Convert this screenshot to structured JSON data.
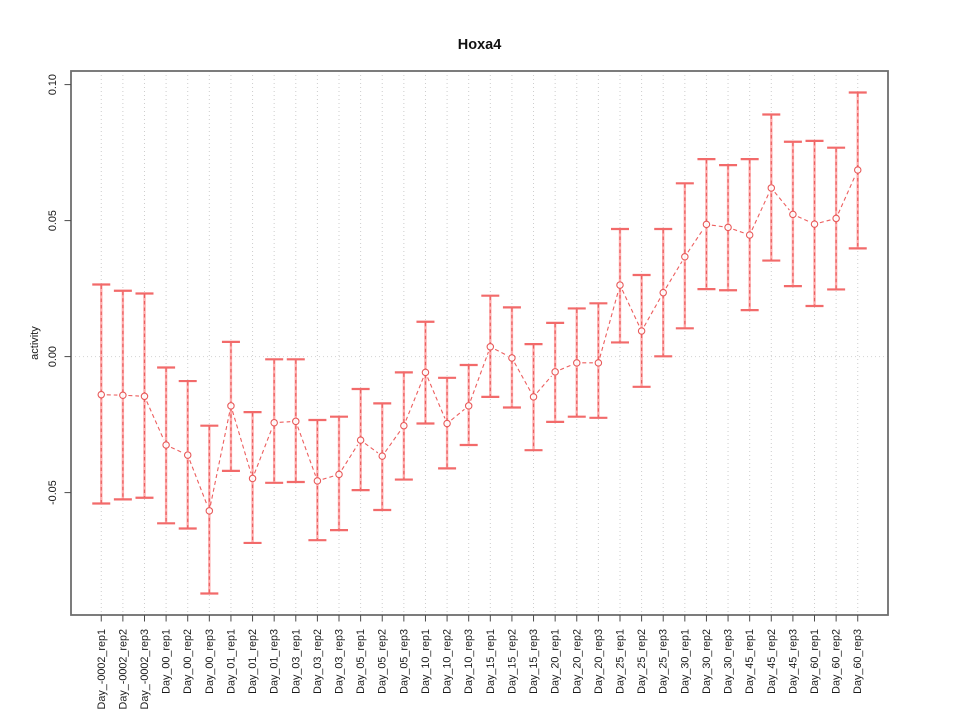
{
  "chart_data": {
    "type": "scatter",
    "subtype": "points-with-error-bars",
    "title": "Hoxa4",
    "xlabel": "",
    "ylabel": "activity",
    "ylim": [
      -0.095,
      0.105
    ],
    "yticks": [
      0.1,
      0.05,
      0.0,
      -0.05
    ],
    "ytick_labels": [
      "0.10",
      "0.05",
      "0.00",
      "-0.05"
    ],
    "grid": "dotted vertical gridline at each category and dotted horizontal line at y=0",
    "legend": "none",
    "categories": [
      "Day_-0002_rep1",
      "Day_-0002_rep2",
      "Day_-0002_rep3",
      "Day_00_rep1",
      "Day_00_rep2",
      "Day_00_rep3",
      "Day_01_rep1",
      "Day_01_rep2",
      "Day_01_rep3",
      "Day_03_rep1",
      "Day_03_rep2",
      "Day_03_rep3",
      "Day_05_rep1",
      "Day_05_rep2",
      "Day_05_rep3",
      "Day_10_rep1",
      "Day_10_rep2",
      "Day_10_rep3",
      "Day_15_rep1",
      "Day_15_rep2",
      "Day_15_rep3",
      "Day_20_rep1",
      "Day_20_rep2",
      "Day_20_rep3",
      "Day_25_rep1",
      "Day_25_rep2",
      "Day_25_rep3",
      "Day_30_rep1",
      "Day_30_rep2",
      "Day_30_rep3",
      "Day_45_rep1",
      "Day_45_rep2",
      "Day_45_rep3",
      "Day_60_rep1",
      "Day_60_rep2",
      "Day_60_rep3"
    ],
    "series": [
      {
        "name": "activity",
        "values": [
          -0.014,
          -0.0142,
          -0.0146,
          -0.0325,
          -0.0362,
          -0.0567,
          -0.0181,
          -0.0448,
          -0.0243,
          -0.0238,
          -0.0457,
          -0.0433,
          -0.0307,
          -0.0366,
          -0.0254,
          -0.0058,
          -0.0246,
          -0.0181,
          0.0036,
          -0.0005,
          -0.0148,
          -0.0056,
          -0.0023,
          -0.0023,
          0.0263,
          0.0094,
          0.0235,
          0.0367,
          0.0486,
          0.0475,
          0.0447,
          0.062,
          0.0523,
          0.0487,
          0.0508,
          0.0686
        ],
        "lower": [
          -0.054,
          -0.0525,
          -0.0519,
          -0.0613,
          -0.0632,
          -0.0871,
          -0.042,
          -0.0685,
          -0.0464,
          -0.0461,
          -0.0675,
          -0.0638,
          -0.0491,
          -0.0564,
          -0.0452,
          -0.0246,
          -0.0411,
          -0.0325,
          -0.0148,
          -0.0187,
          -0.0344,
          -0.024,
          -0.0221,
          -0.0225,
          0.0052,
          -0.0111,
          0.0001,
          0.0104,
          0.0248,
          0.0244,
          0.0171,
          0.0353,
          0.0259,
          0.0186,
          0.0247,
          0.0398
        ],
        "upper": [
          0.0265,
          0.0242,
          0.0232,
          -0.004,
          -0.009,
          -0.0254,
          0.0054,
          -0.0204,
          -0.001,
          -0.001,
          -0.0233,
          -0.0221,
          -0.0119,
          -0.0172,
          -0.0058,
          0.0128,
          -0.0078,
          -0.0031,
          0.0224,
          0.0181,
          0.0046,
          0.0124,
          0.0177,
          0.0196,
          0.0469,
          0.03,
          0.0469,
          0.0637,
          0.0726,
          0.0704,
          0.0726,
          0.089,
          0.079,
          0.0793,
          0.0768,
          0.0971
        ]
      }
    ],
    "colors": {
      "error_bar_fill": "#ffacac",
      "error_bar_dash": "#e96060",
      "error_bar_cap": "#f26a6a",
      "connector_line": "#ed5f5f",
      "marker_stroke": "#e85a5a",
      "grid_line": "#cdcdcd",
      "zero_line": "#d2d2d2",
      "axis_box": "#6e6e6e",
      "tick_mark": "#4a4a4a",
      "text": "#1a1a1a"
    }
  }
}
